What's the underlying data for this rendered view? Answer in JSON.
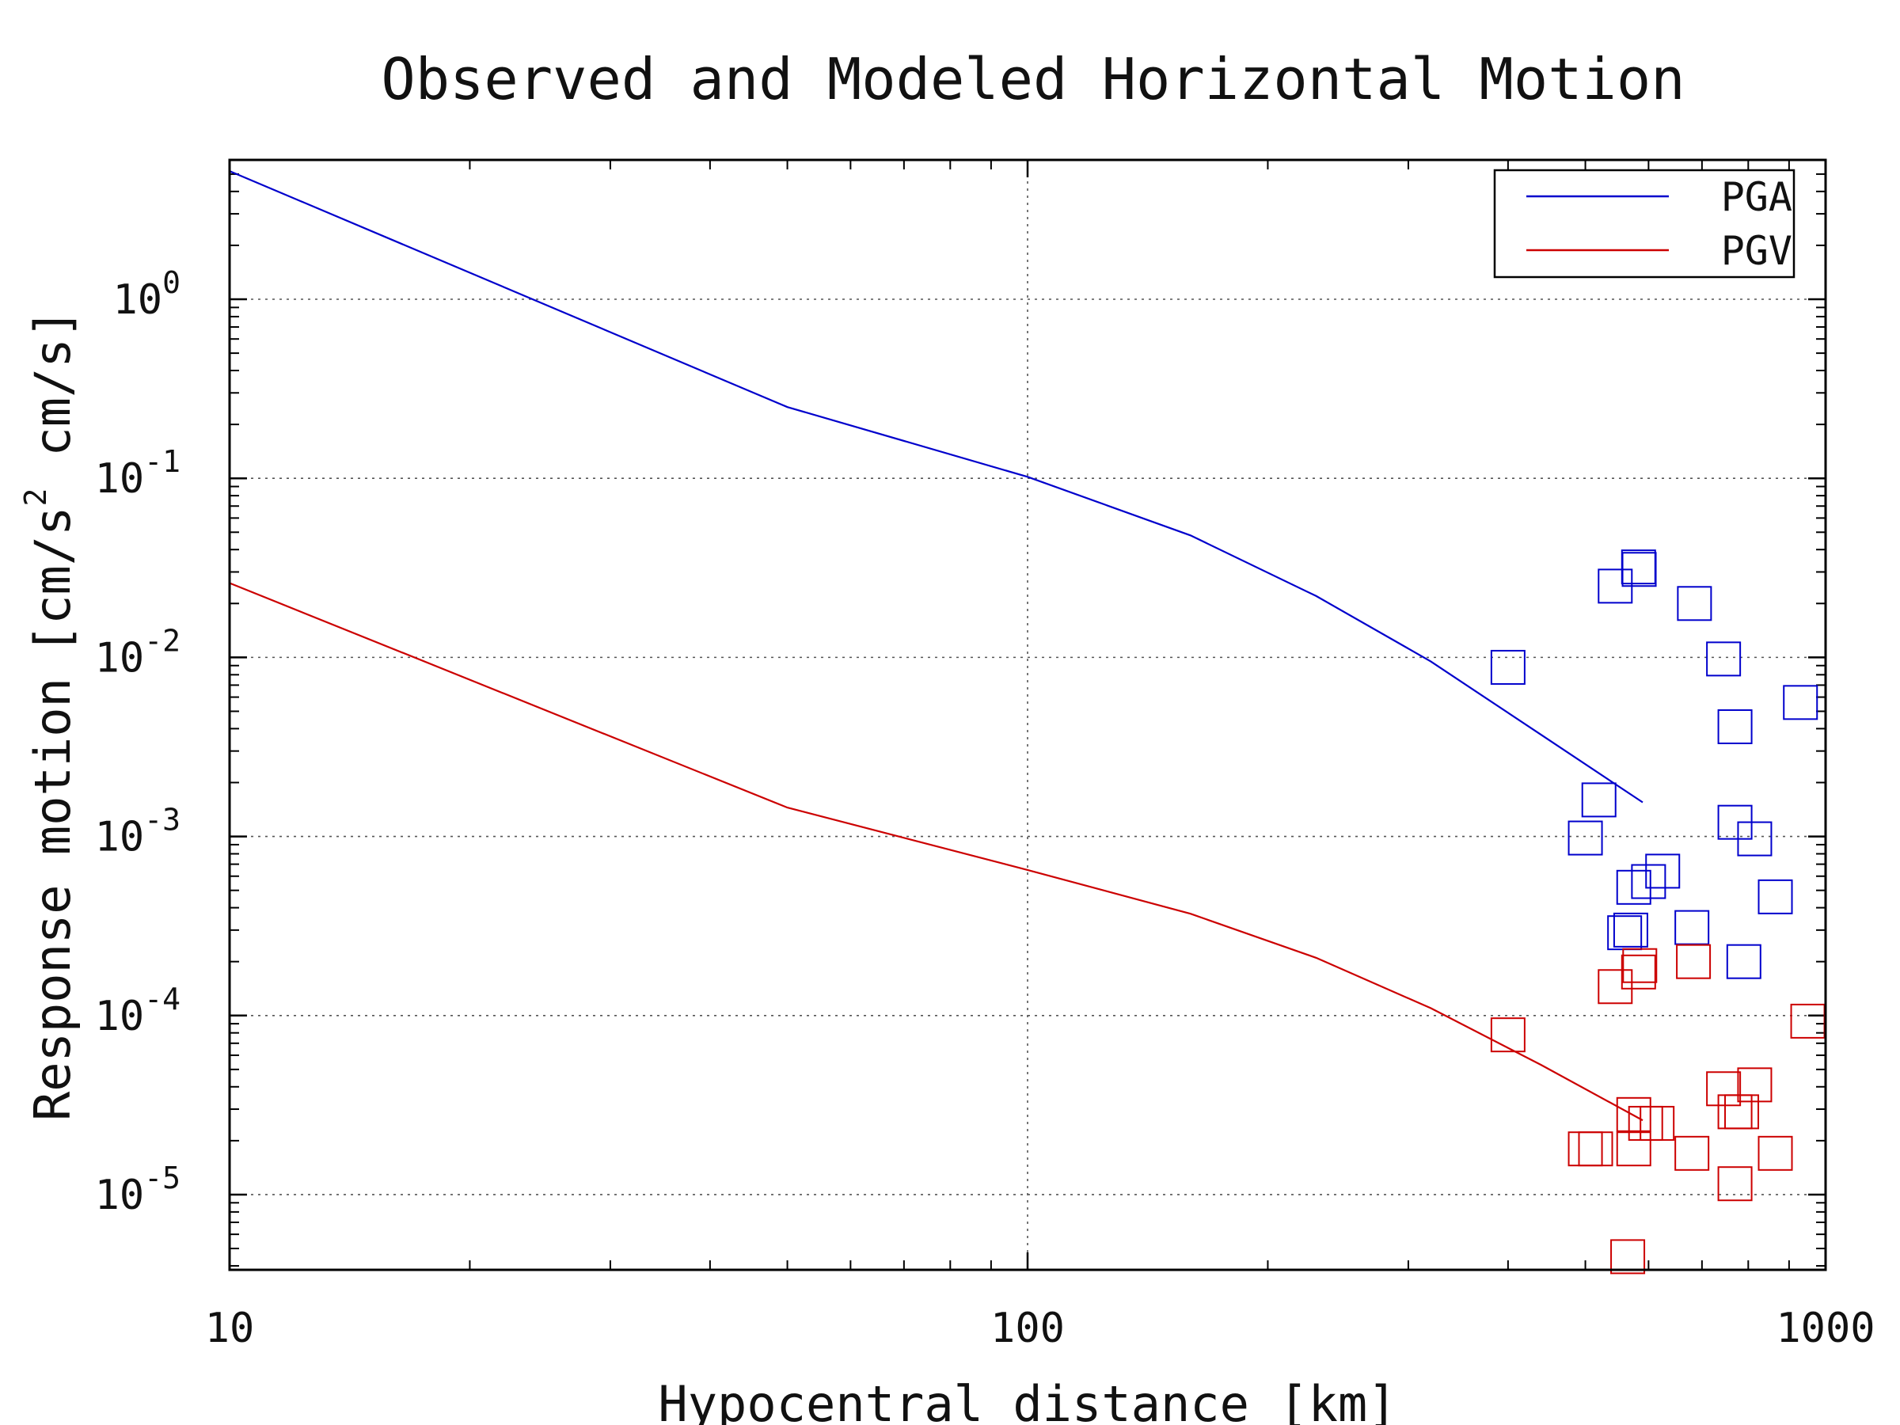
{
  "chart_data": {
    "type": "scatter",
    "title": "Observed and Modeled Horizontal Motion",
    "xlabel": "Hypocentral distance [km]",
    "ylabel_main": "Response motion",
    "ylabel_units_prefix": "[cm/s",
    "ylabel_units_exp": "2",
    "ylabel_units_suffix": "cm/s]",
    "xscale": "log",
    "yscale": "log",
    "xlim": [
      10,
      1000
    ],
    "ylim": [
      3.8e-06,
      6
    ],
    "grid": true,
    "legend_position": "top-right",
    "x_ticks": [
      {
        "value": 10,
        "label": "10"
      },
      {
        "value": 100,
        "label": "100"
      },
      {
        "value": 1000,
        "label": "1000"
      }
    ],
    "y_ticks": [
      {
        "value": 1,
        "base": "10",
        "exp": "0"
      },
      {
        "value": 0.1,
        "base": "10",
        "exp": "-1"
      },
      {
        "value": 0.01,
        "base": "10",
        "exp": "-2"
      },
      {
        "value": 0.001,
        "base": "10",
        "exp": "-3"
      },
      {
        "value": 0.0001,
        "base": "10",
        "exp": "-4"
      },
      {
        "value": 1e-05,
        "base": "10",
        "exp": "-5"
      }
    ],
    "series": [
      {
        "name": "PGA",
        "color": "#0000cc",
        "model_line": [
          [
            10,
            5.2
          ],
          [
            50,
            0.25
          ],
          [
            100,
            0.102
          ],
          [
            160,
            0.048
          ],
          [
            230,
            0.022
          ],
          [
            320,
            0.0095
          ],
          [
            440,
            0.0037
          ],
          [
            590,
            0.00155
          ]
        ],
        "observed": [
          [
            400,
            0.0088
          ],
          [
            545,
            0.025
          ],
          [
            583,
            0.032
          ],
          [
            584,
            0.031
          ],
          [
            685,
            0.02
          ],
          [
            745,
            0.0098
          ],
          [
            770,
            0.0041
          ],
          [
            930,
            0.0056
          ],
          [
            520,
            0.0016
          ],
          [
            500,
            0.00098
          ],
          [
            770,
            0.0012
          ],
          [
            815,
            0.00097
          ],
          [
            575,
            0.00052
          ],
          [
            600,
            0.00056
          ],
          [
            625,
            0.00064
          ],
          [
            570,
            0.0003
          ],
          [
            560,
            0.00029
          ],
          [
            680,
            0.00031
          ],
          [
            865,
            0.00046
          ],
          [
            790,
            0.0002
          ]
        ]
      },
      {
        "name": "PGV",
        "color": "#cc0000",
        "model_line": [
          [
            10,
            0.026
          ],
          [
            50,
            0.00145
          ],
          [
            100,
            0.00065
          ],
          [
            160,
            0.00037
          ],
          [
            230,
            0.00021
          ],
          [
            320,
            0.00011
          ],
          [
            440,
            5.3e-05
          ],
          [
            590,
            2.6e-05
          ]
        ],
        "observed": [
          [
            400,
            7.8e-05
          ],
          [
            545,
            0.000145
          ],
          [
            583,
            0.000175
          ],
          [
            585,
            0.00019
          ],
          [
            683,
            0.0002
          ],
          [
            950,
            9.3e-05
          ],
          [
            745,
            3.9e-05
          ],
          [
            815,
            4.1e-05
          ],
          [
            770,
            2.9e-05
          ],
          [
            785,
            2.9e-05
          ],
          [
            575,
            2.8e-05
          ],
          [
            595,
            2.5e-05
          ],
          [
            615,
            2.5e-05
          ],
          [
            500,
            1.8e-05
          ],
          [
            515,
            1.8e-05
          ],
          [
            575,
            1.8e-05
          ],
          [
            680,
            1.7e-05
          ],
          [
            865,
            1.7e-05
          ],
          [
            770,
            1.15e-05
          ],
          [
            565,
            4.5e-06
          ]
        ]
      }
    ]
  }
}
